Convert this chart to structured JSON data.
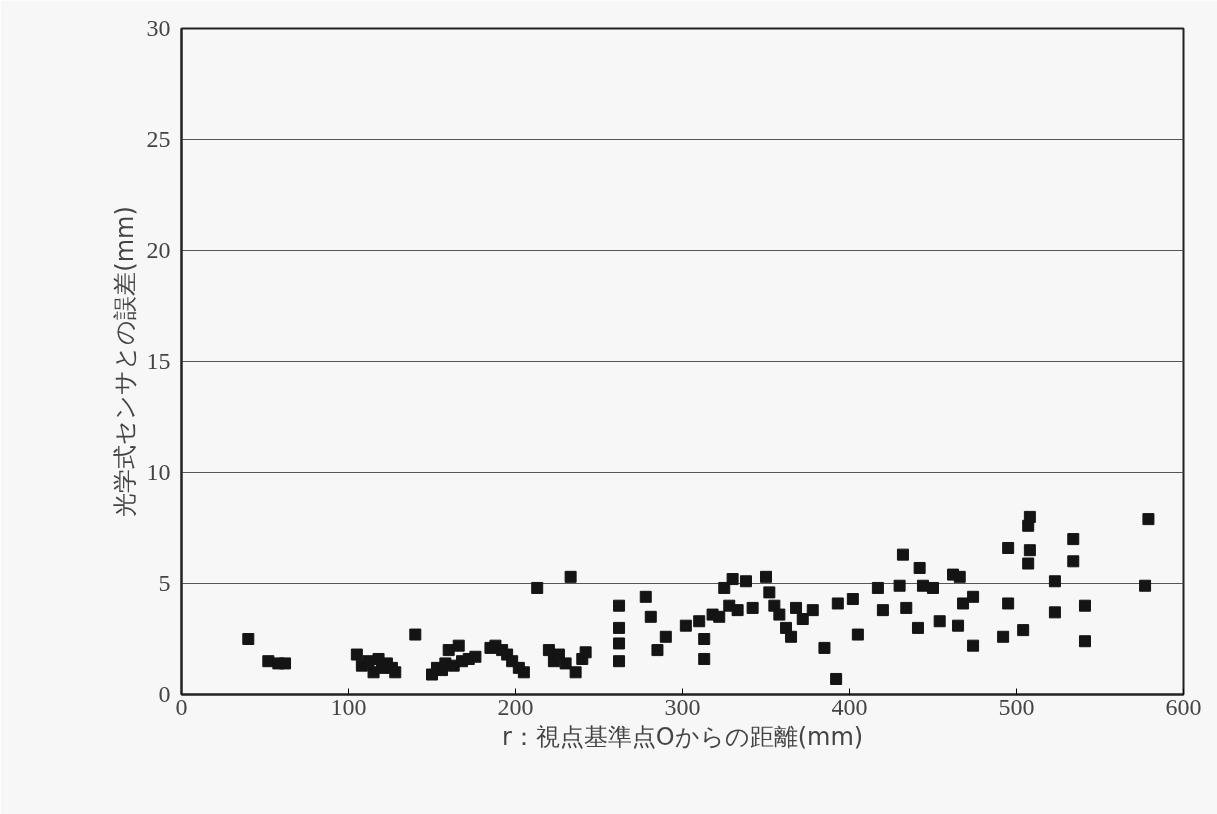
{
  "chart_data": {
    "type": "scatter",
    "xlabel": "r：視点基準点Oからの距離(mm)",
    "ylabel": "光学式センサとの誤差(mm)",
    "xlim": [
      0,
      600
    ],
    "ylim": [
      0,
      30
    ],
    "xticks": [
      0,
      100,
      200,
      300,
      400,
      500,
      600
    ],
    "yticks": [
      0,
      5,
      10,
      15,
      20,
      25,
      30
    ],
    "grid": "y",
    "marker": "square",
    "series": [
      {
        "color": "#141414",
        "x": [
          40,
          52,
          58,
          62,
          105,
          108,
          112,
          115,
          118,
          120,
          123,
          126,
          128,
          140,
          150,
          153,
          156,
          158,
          160,
          163,
          166,
          168,
          172,
          176,
          185,
          188,
          192,
          195,
          198,
          202,
          205,
          213,
          220,
          223,
          226,
          230,
          233,
          236,
          240,
          242,
          262,
          262,
          262,
          262,
          278,
          281,
          285,
          290,
          302,
          310,
          313,
          313,
          318,
          322,
          325,
          328,
          330,
          333,
          338,
          342,
          350,
          352,
          355,
          358,
          362,
          365,
          368,
          372,
          378,
          385,
          392,
          393,
          402,
          405,
          417,
          420,
          432,
          430,
          434,
          442,
          441,
          444,
          450,
          454,
          462,
          466,
          465,
          468,
          474,
          474,
          495,
          495,
          492,
          504,
          508,
          507,
          508,
          507,
          523,
          523,
          534,
          534,
          541,
          541,
          579,
          577
        ],
        "values": [
          2.5,
          1.5,
          1.4,
          1.4,
          1.8,
          1.3,
          1.5,
          1.0,
          1.6,
          1.2,
          1.4,
          1.2,
          1.0,
          2.7,
          0.9,
          1.2,
          1.1,
          1.4,
          2.0,
          1.3,
          2.2,
          1.5,
          1.6,
          1.7,
          2.1,
          2.2,
          2.0,
          1.8,
          1.5,
          1.2,
          1.0,
          4.8,
          2.0,
          1.5,
          1.8,
          1.4,
          5.3,
          1.0,
          1.6,
          1.9,
          4.0,
          3.0,
          2.3,
          1.5,
          4.4,
          3.5,
          2.0,
          2.6,
          3.1,
          3.3,
          2.5,
          1.6,
          3.6,
          3.5,
          4.8,
          4.0,
          5.2,
          3.8,
          5.1,
          3.9,
          5.3,
          4.6,
          4.0,
          3.6,
          3.0,
          2.6,
          3.9,
          3.4,
          3.8,
          2.1,
          0.7,
          4.1,
          4.3,
          2.7,
          4.8,
          3.8,
          6.3,
          4.9,
          3.9,
          5.7,
          3.0,
          4.9,
          4.8,
          3.3,
          5.4,
          5.3,
          3.1,
          4.1,
          4.4,
          2.2,
          6.6,
          4.1,
          2.6,
          2.9,
          8.0,
          7.6,
          6.5,
          5.9,
          5.1,
          3.7,
          7.0,
          6.0,
          4.0,
          2.4,
          7.9,
          4.9
        ]
      }
    ]
  }
}
